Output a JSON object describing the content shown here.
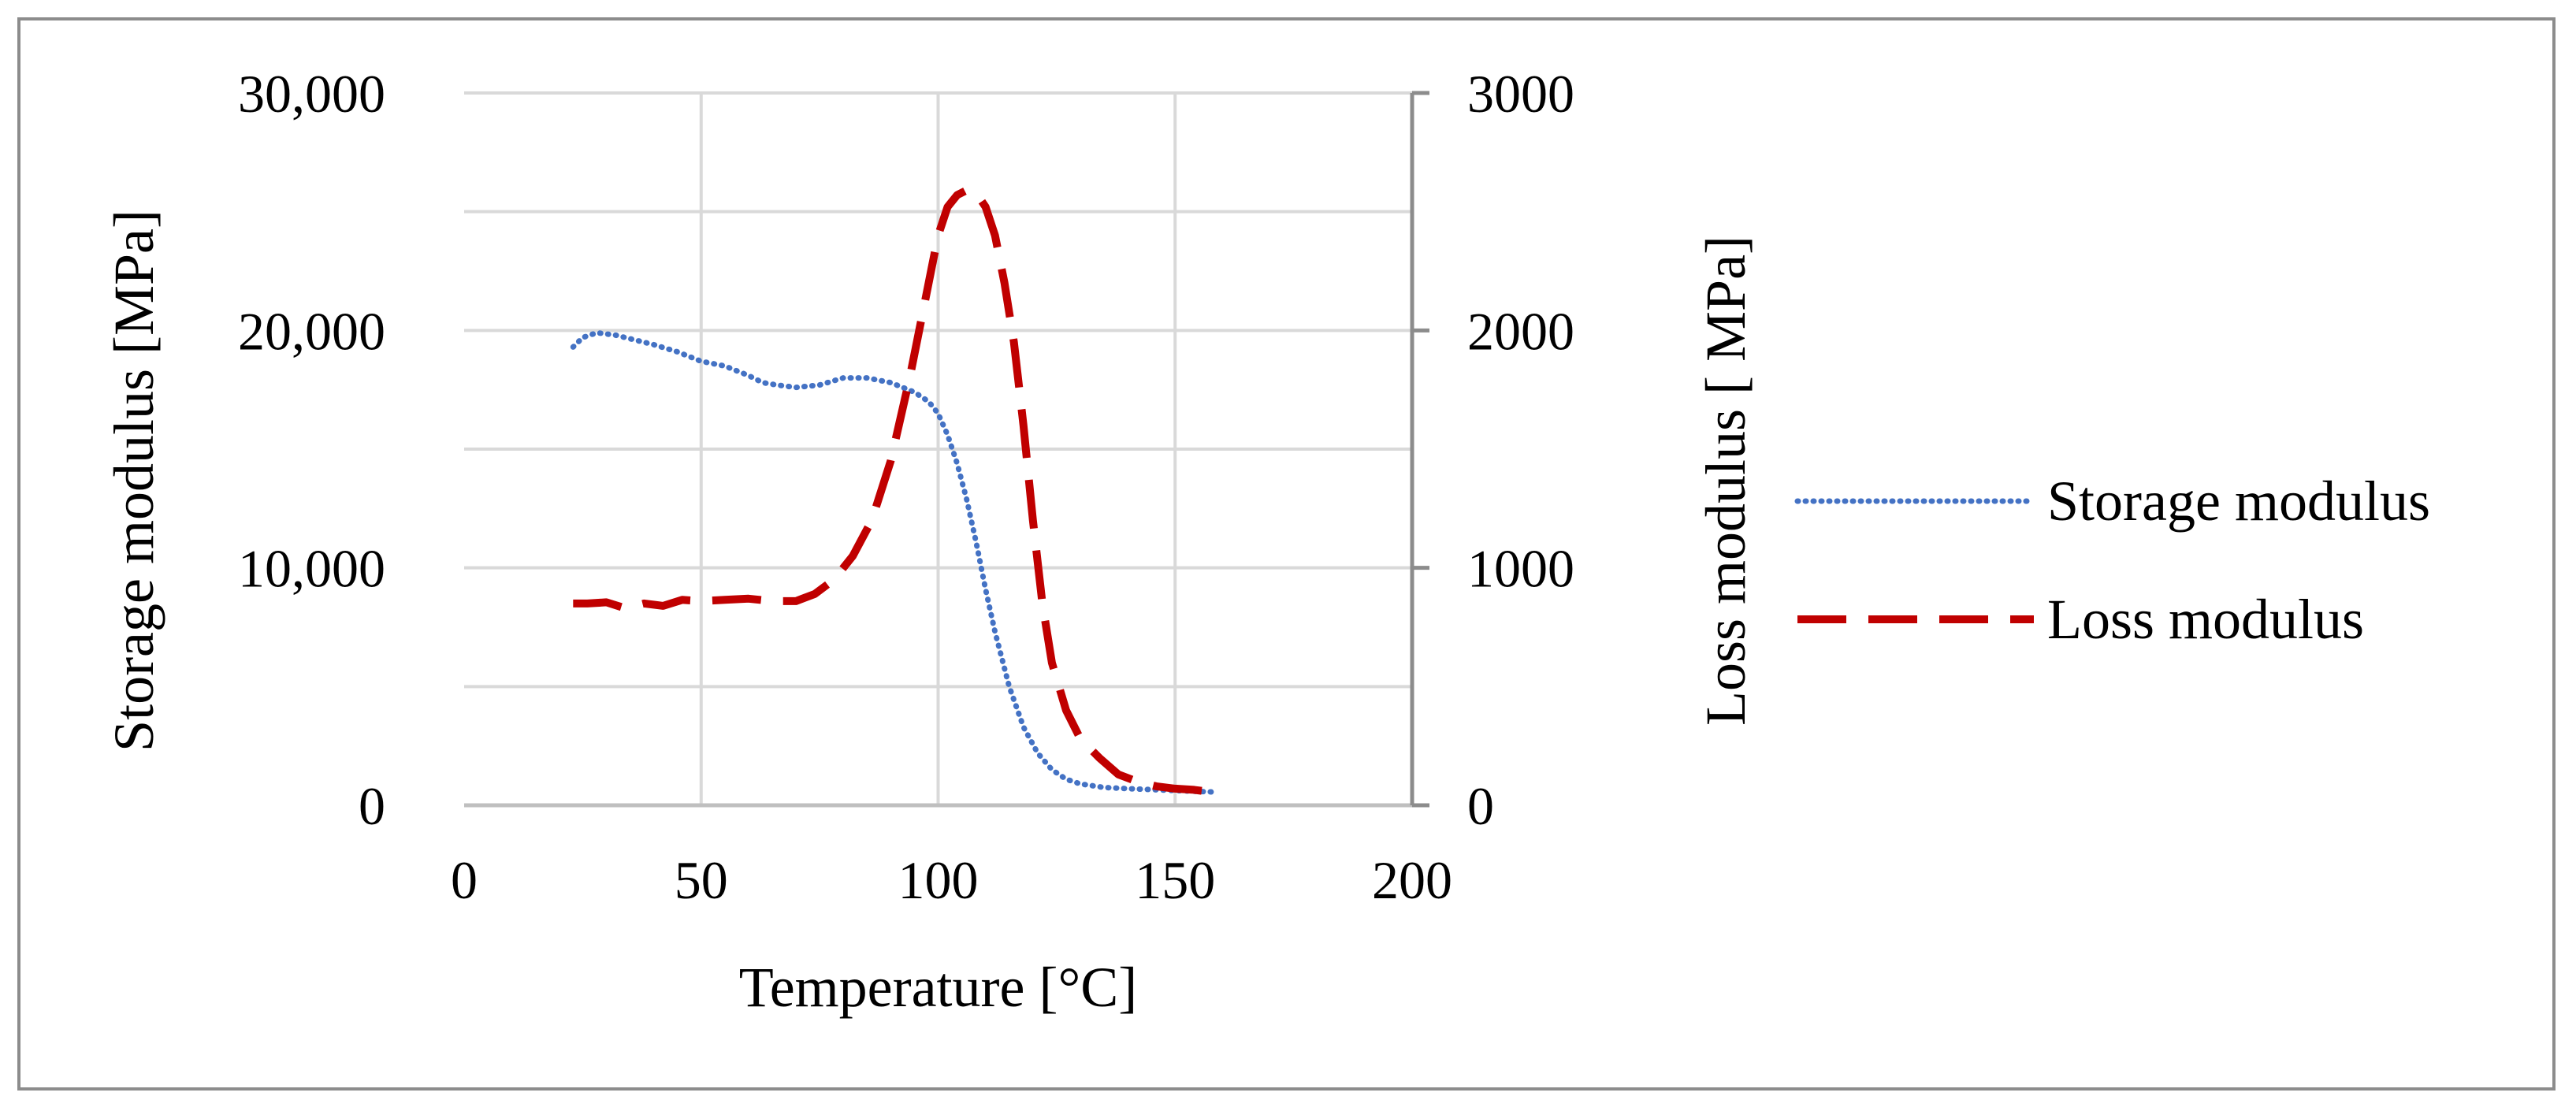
{
  "chart_data": {
    "type": "line",
    "title": "",
    "xlabel": "Temperature  [°C]",
    "ylabel": "Storage modulus [MPa]",
    "y2label": "Loss modulus [ MPa]",
    "xlim": [
      0,
      200
    ],
    "ylim": [
      0,
      30000
    ],
    "y2lim": [
      0,
      3000
    ],
    "xticks": [
      "0",
      "50",
      "100",
      "150",
      "200"
    ],
    "yticks": [
      "0",
      "10,000",
      "20,000",
      "30,000"
    ],
    "y2ticks": [
      "0",
      "1000",
      "2000",
      "3000"
    ],
    "grid": true,
    "legend_position": "right",
    "series": [
      {
        "name": "Storage modulus",
        "axis": "left",
        "color": "#4472C4",
        "style": "dotted",
        "x": [
          23,
          25,
          28,
          32,
          36,
          40,
          45,
          50,
          55,
          60,
          63,
          66,
          70,
          75,
          80,
          85,
          90,
          95,
          98,
          100,
          102,
          104,
          106,
          108,
          110,
          112,
          115,
          118,
          121,
          124,
          127,
          130,
          135,
          140,
          145,
          150,
          155,
          158
        ],
        "y": [
          19300,
          19700,
          19900,
          19800,
          19600,
          19400,
          19100,
          18700,
          18500,
          18100,
          17800,
          17700,
          17600,
          17700,
          18000,
          18000,
          17800,
          17400,
          17000,
          16500,
          15600,
          14400,
          12900,
          11100,
          9100,
          7300,
          5000,
          3300,
          2200,
          1500,
          1100,
          900,
          750,
          700,
          660,
          620,
          580,
          560
        ]
      },
      {
        "name": "Loss modulus",
        "axis": "right",
        "color": "#C00000",
        "style": "dashed",
        "x": [
          23,
          26,
          30,
          34,
          38,
          42,
          46,
          50,
          55,
          60,
          65,
          70,
          74,
          78,
          82,
          86,
          90,
          94,
          97,
          100,
          102,
          104,
          106,
          108,
          110,
          112,
          114,
          116,
          118,
          120,
          122,
          124,
          127,
          130,
          134,
          138,
          142,
          146,
          150,
          154,
          158
        ],
        "y": [
          850,
          850,
          855,
          830,
          850,
          840,
          865,
          860,
          865,
          870,
          860,
          860,
          890,
          950,
          1050,
          1200,
          1450,
          1800,
          2100,
          2400,
          2520,
          2570,
          2590,
          2580,
          2520,
          2400,
          2200,
          1950,
          1600,
          1200,
          850,
          600,
          400,
          280,
          200,
          130,
          100,
          80,
          70,
          65,
          55
        ]
      }
    ]
  }
}
